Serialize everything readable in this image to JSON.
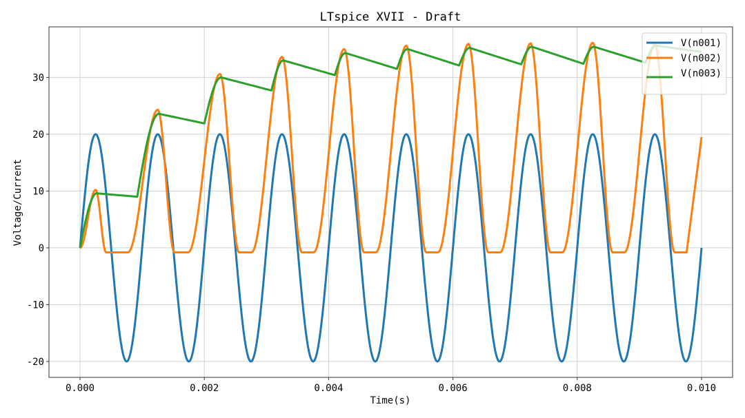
{
  "chart_data": {
    "type": "line",
    "title": "LTspice XVII - Draft",
    "xlabel": "Time(s)",
    "ylabel": "Voltage/Current",
    "xlim": [
      -0.0005,
      0.0105
    ],
    "ylim": [
      -22.8,
      38.9
    ],
    "xticks": [
      0,
      0.002,
      0.004,
      0.006,
      0.008,
      0.01
    ],
    "xtick_labels": [
      "0.000",
      "0.002",
      "0.004",
      "0.006",
      "0.008",
      "0.010"
    ],
    "yticks": [
      -20,
      -10,
      0,
      10,
      20,
      30
    ],
    "ytick_labels": [
      "-20",
      "-10",
      "0",
      "10",
      "20",
      "30"
    ],
    "grid": true,
    "legend_position": "top-right",
    "series": [
      {
        "name": "V(n001)",
        "color": "#1f77b4",
        "kind": "sine",
        "amplitude": 20,
        "frequency_hz": 1000,
        "t_range_s": [
          0,
          0.01
        ]
      },
      {
        "name": "V(n002)",
        "color": "#ff7f0e",
        "kind": "keypoints_ms",
        "points": [
          [
            0,
            0
          ],
          [
            0.25,
            10.2
          ],
          [
            0.42,
            -0.8
          ],
          [
            0.77,
            -0.8
          ],
          [
            1.25,
            24.3
          ],
          [
            1.52,
            -0.8
          ],
          [
            1.74,
            -0.8
          ],
          [
            2.25,
            30.6
          ],
          [
            2.56,
            -0.8
          ],
          [
            2.76,
            -0.8
          ],
          [
            3.25,
            33.6
          ],
          [
            3.57,
            -0.8
          ],
          [
            3.76,
            -0.8
          ],
          [
            4.25,
            35.0
          ],
          [
            4.57,
            -0.8
          ],
          [
            4.76,
            -0.8
          ],
          [
            5.25,
            35.6
          ],
          [
            5.57,
            -0.8
          ],
          [
            5.76,
            -0.8
          ],
          [
            6.25,
            35.9
          ],
          [
            6.57,
            -0.8
          ],
          [
            6.76,
            -0.8
          ],
          [
            7.25,
            36.0
          ],
          [
            7.57,
            -0.8
          ],
          [
            7.76,
            -0.8
          ],
          [
            8.25,
            36.1
          ],
          [
            8.57,
            -0.8
          ],
          [
            8.76,
            -0.8
          ],
          [
            9.25,
            35.8
          ],
          [
            9.57,
            -0.8
          ],
          [
            9.76,
            -0.8
          ],
          [
            10.0,
            19.5
          ]
        ]
      },
      {
        "name": "V(n003)",
        "color": "#2ca02c",
        "kind": "keypoints_ms",
        "points": [
          [
            0,
            0
          ],
          [
            0.27,
            9.6
          ],
          [
            0.92,
            9.0
          ],
          [
            1.27,
            23.6
          ],
          [
            2.0,
            21.9
          ],
          [
            2.27,
            30.0
          ],
          [
            3.08,
            27.7
          ],
          [
            3.27,
            33.0
          ],
          [
            4.1,
            30.4
          ],
          [
            4.27,
            34.3
          ],
          [
            5.1,
            31.5
          ],
          [
            5.27,
            35.0
          ],
          [
            6.1,
            32.1
          ],
          [
            6.27,
            35.2
          ],
          [
            7.1,
            32.3
          ],
          [
            7.27,
            35.4
          ],
          [
            8.1,
            32.4
          ],
          [
            8.27,
            35.4
          ],
          [
            9.1,
            32.6
          ],
          [
            9.27,
            35.6
          ],
          [
            10.0,
            34.5
          ]
        ]
      }
    ]
  }
}
